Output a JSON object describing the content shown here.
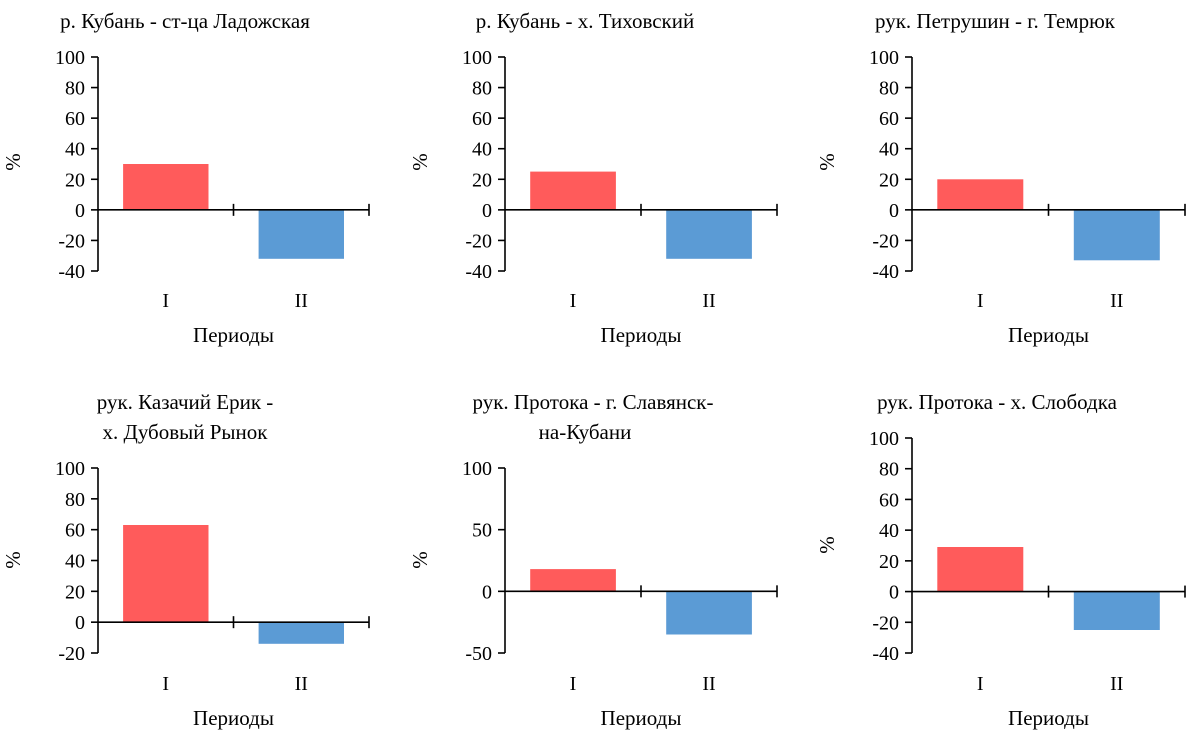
{
  "colors": {
    "period_I": "#ff5b5b",
    "period_II": "#5b9bd5",
    "axis": "#000000"
  },
  "chart_data": [
    {
      "type": "bar",
      "title_lines": [
        "р. Кубань - ст-ца Ладожская"
      ],
      "categories": [
        "I",
        "II"
      ],
      "values": [
        30,
        -32
      ],
      "xlabel": "Периоды",
      "ylabel": "%",
      "ylim": [
        -40,
        100
      ],
      "yticks": [
        100,
        80,
        60,
        40,
        20,
        0,
        -20,
        -40
      ],
      "grid": false,
      "legend": "none"
    },
    {
      "type": "bar",
      "title_lines": [
        "р. Кубань - х. Тиховский"
      ],
      "categories": [
        "I",
        "II"
      ],
      "values": [
        25,
        -32
      ],
      "xlabel": "Периоды",
      "ylabel": "%",
      "ylim": [
        -40,
        100
      ],
      "yticks": [
        100,
        80,
        60,
        40,
        20,
        0,
        -20,
        -40
      ],
      "grid": false,
      "legend": "none"
    },
    {
      "type": "bar",
      "title_lines": [
        "рук. Петрушин - г. Темрюк"
      ],
      "categories": [
        "I",
        "II"
      ],
      "values": [
        20,
        -33
      ],
      "xlabel": "Периоды",
      "ylabel": "%",
      "ylim": [
        -40,
        100
      ],
      "yticks": [
        100,
        80,
        60,
        40,
        20,
        0,
        -20,
        -40
      ],
      "grid": false,
      "legend": "none"
    },
    {
      "type": "bar",
      "title_lines": [
        "рук. Казачий Ерик -",
        "х. Дубовый Рынок"
      ],
      "categories": [
        "I",
        "II"
      ],
      "values": [
        63,
        -14
      ],
      "xlabel": "Периоды",
      "ylabel": "%",
      "ylim": [
        -20,
        100
      ],
      "yticks": [
        100,
        80,
        60,
        40,
        20,
        0,
        -20
      ],
      "grid": false,
      "legend": "none"
    },
    {
      "type": "bar",
      "title_lines": [
        "рук. Протока - г. Славянск-",
        "на-Кубани"
      ],
      "categories": [
        "I",
        "II"
      ],
      "values": [
        18,
        -35
      ],
      "xlabel": "Периоды",
      "ylabel": "%",
      "ylim": [
        -50,
        100
      ],
      "yticks": [
        100,
        50,
        0,
        -50
      ],
      "grid": false,
      "legend": "none"
    },
    {
      "type": "bar",
      "title_lines": [
        "рук. Протока - х. Слободка"
      ],
      "categories": [
        "I",
        "II"
      ],
      "values": [
        29,
        -25
      ],
      "xlabel": "Периоды",
      "ylabel": "%",
      "ylim": [
        -40,
        100
      ],
      "yticks": [
        100,
        80,
        60,
        40,
        20,
        0,
        -20,
        -40
      ],
      "grid": false,
      "legend": "none"
    }
  ]
}
